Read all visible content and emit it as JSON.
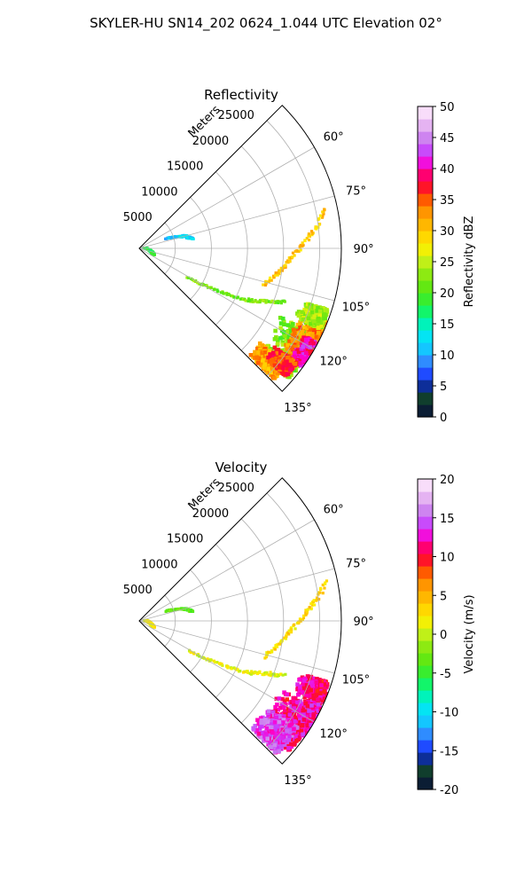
{
  "figure": {
    "title": "SKYLER-HU  SN14_202  0624_1.044 UTC Elevation 02°"
  },
  "chart_data": [
    {
      "type": "heatmap",
      "title": "Reflectivity",
      "radial_label": "Meters",
      "radial_ticks": [
        "5000",
        "10000",
        "15000",
        "20000",
        "25000"
      ],
      "radial_tick_values": [
        5000,
        10000,
        15000,
        20000,
        25000
      ],
      "r_max": 28000,
      "theta_range_deg": [
        45,
        135
      ],
      "theta_ticks": [
        "60°",
        "75°",
        "90°",
        "105°",
        "120°",
        "135°"
      ],
      "theta_tick_values": [
        60,
        75,
        90,
        105,
        120,
        135
      ],
      "colorbar": {
        "label": "Reflectivity dBZ",
        "range": [
          0,
          50
        ],
        "ticks": [
          "0",
          "5",
          "10",
          "15",
          "20",
          "25",
          "30",
          "35",
          "40",
          "45",
          "50"
        ],
        "tick_values": [
          0,
          5,
          10,
          15,
          20,
          25,
          30,
          35,
          40,
          45,
          50
        ]
      },
      "echo_regions": [
        {
          "theta": [
            116,
            131
          ],
          "r": [
            21500,
            27500
          ],
          "value": 22
        },
        {
          "theta": [
            111,
            125
          ],
          "r": [
            24000,
            28000
          ],
          "value": 33
        },
        {
          "theta": [
            118,
            126
          ],
          "r": [
            25800,
            27800
          ],
          "value": 40
        },
        {
          "theta": [
            108,
            114
          ],
          "r": [
            23500,
            27500
          ],
          "value": 24
        },
        {
          "theta": [
            128,
            134
          ],
          "r": [
            21000,
            26000
          ],
          "value": 32
        },
        {
          "theta": [
            126,
            131
          ],
          "r": [
            23000,
            27000
          ],
          "value": 36
        }
      ],
      "echo_lines": [
        {
          "points": [
            [
              106,
              18000
            ],
            [
              92,
              21500
            ],
            [
              78,
              26500
            ]
          ],
          "value": 30
        },
        {
          "points": [
            [
              121,
              8000
            ],
            [
              116,
              16000
            ],
            [
              110,
              21500
            ]
          ],
          "value": 22
        },
        {
          "points": [
            [
              70,
              4000
            ],
            [
              75,
              6500
            ],
            [
              80,
              7500
            ]
          ],
          "value": 12
        },
        {
          "points": [
            [
              86,
              800
            ],
            [
              100,
              1500
            ],
            [
              114,
              2200
            ]
          ],
          "value": 18
        }
      ]
    },
    {
      "type": "heatmap",
      "title": "Velocity",
      "radial_label": "Meters",
      "radial_ticks": [
        "5000",
        "10000",
        "15000",
        "20000",
        "25000"
      ],
      "radial_tick_values": [
        5000,
        10000,
        15000,
        20000,
        25000
      ],
      "r_max": 28000,
      "theta_range_deg": [
        45,
        135
      ],
      "theta_ticks": [
        "60°",
        "75°",
        "90°",
        "105°",
        "120°",
        "135°"
      ],
      "theta_tick_values": [
        60,
        75,
        90,
        105,
        120,
        135
      ],
      "colorbar": {
        "label": "Velocity (m/s)",
        "range": [
          -20,
          20
        ],
        "ticks": [
          "-20",
          "-15",
          "-10",
          "-5",
          "0",
          "5",
          "10",
          "15",
          "20"
        ],
        "tick_values": [
          -20,
          -15,
          -10,
          -5,
          0,
          5,
          10,
          15,
          20
        ]
      },
      "echo_regions": [
        {
          "theta": [
            116,
            131
          ],
          "r": [
            21500,
            27500
          ],
          "value": 11
        },
        {
          "theta": [
            111,
            125
          ],
          "r": [
            24000,
            28000
          ],
          "value": 12
        },
        {
          "theta": [
            124,
            134
          ],
          "r": [
            21000,
            26500
          ],
          "value": 14
        },
        {
          "theta": [
            108,
            114
          ],
          "r": [
            23500,
            27500
          ],
          "value": 11
        }
      ],
      "echo_lines": [
        {
          "points": [
            [
              106,
              18000
            ],
            [
              92,
              21500
            ],
            [
              78,
              26500
            ]
          ],
          "value": 3
        },
        {
          "points": [
            [
              121,
              8000
            ],
            [
              116,
              16000
            ],
            [
              110,
              21500
            ]
          ],
          "value": 1
        },
        {
          "points": [
            [
              70,
              4000
            ],
            [
              75,
              6500
            ],
            [
              80,
              7500
            ]
          ],
          "value": -3
        },
        {
          "points": [
            [
              86,
              800
            ],
            [
              100,
              1500
            ],
            [
              114,
              2200
            ]
          ],
          "value": 2
        }
      ]
    }
  ]
}
